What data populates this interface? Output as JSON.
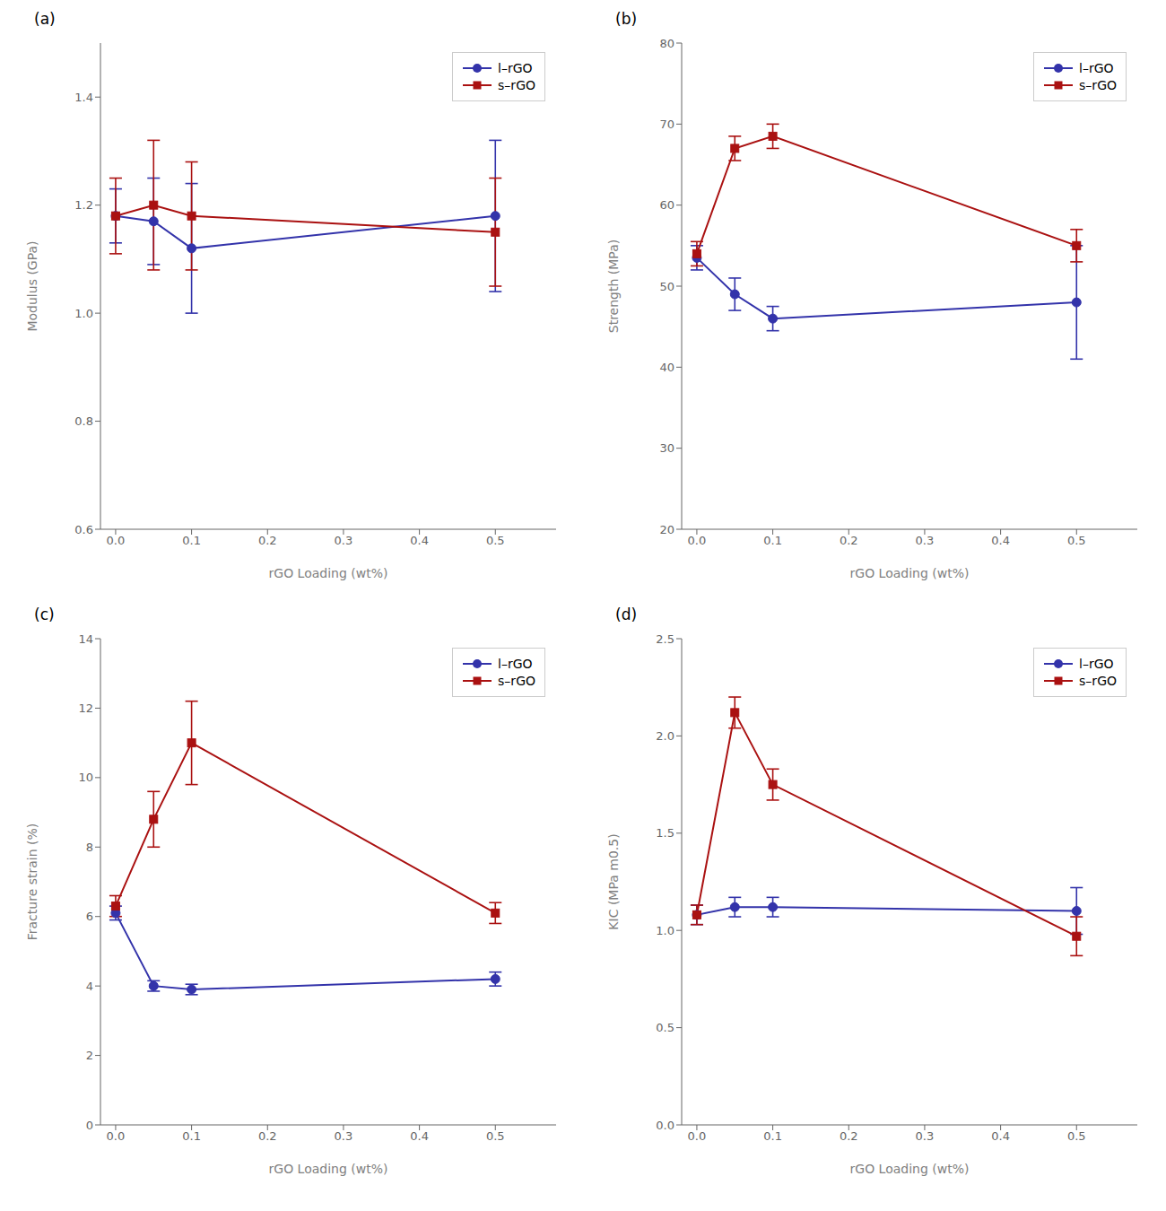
{
  "chart_data": [
    {
      "type": "line",
      "title": "(a)",
      "x_label": "rGO Loading (wt%)",
      "y_label": "Modulus (GPa)",
      "x": [
        0.0,
        0.05,
        0.1,
        0.5
      ],
      "series": [
        {
          "name": "l–rGO",
          "color": "#3333aa",
          "marker": "circle",
          "line_style": "solid",
          "values": [
            1.18,
            1.17,
            1.12,
            1.18
          ],
          "errors": [
            0.05,
            0.08,
            0.12,
            0.14
          ]
        },
        {
          "name": "s–rGO",
          "color": "#aa1111",
          "marker": "square",
          "line_style": "solid",
          "values": [
            1.18,
            1.2,
            1.18,
            1.15
          ],
          "errors": [
            0.07,
            0.12,
            0.1,
            0.1
          ]
        }
      ],
      "xlim": [
        -0.02,
        0.58
      ],
      "xticks": [
        {
          "value": 0.0,
          "label": "0.0"
        },
        0.1,
        0.2,
        0.3,
        0.4,
        0.5
      ],
      "ylim": [
        0.6,
        1.5
      ],
      "yticks": [
        0.6,
        0.8,
        {
          "value": 1.0,
          "label": "1.0"
        },
        1.2,
        1.4
      ],
      "legend": "upper right",
      "grid": false
    },
    {
      "type": "line",
      "title": "(b)",
      "x_label": "rGO Loading (wt%)",
      "y_label": "Strength (MPa)",
      "x": [
        0.0,
        0.05,
        0.1,
        0.5
      ],
      "series": [
        {
          "name": "l–rGO",
          "color": "#3333aa",
          "marker": "circle",
          "line_style": "solid",
          "values": [
            53.5,
            49.0,
            46.0,
            48.0
          ],
          "errors": [
            1.5,
            2.0,
            1.5,
            7.0
          ]
        },
        {
          "name": "s–rGO",
          "color": "#aa1111",
          "marker": "square",
          "line_style": "solid",
          "values": [
            54.0,
            67.0,
            68.5,
            55.0
          ],
          "errors": [
            1.5,
            1.5,
            1.5,
            2.0
          ]
        }
      ],
      "xlim": [
        -0.02,
        0.58
      ],
      "xticks": [
        {
          "value": 0.0,
          "label": "0.0"
        },
        0.1,
        0.2,
        0.3,
        0.4,
        0.5
      ],
      "ylim": [
        20,
        80
      ],
      "yticks": [
        20,
        30,
        40,
        50,
        60,
        70,
        80
      ],
      "legend": "upper right",
      "grid": false
    },
    {
      "type": "line",
      "title": "(c)",
      "x_label": "rGO Loading (wt%)",
      "y_label": "Fracture strain (%)",
      "x": [
        0.0,
        0.05,
        0.1,
        0.5
      ],
      "series": [
        {
          "name": "l–rGO",
          "color": "#3333aa",
          "marker": "circle",
          "line_style": "solid",
          "values": [
            6.1,
            4.0,
            3.9,
            4.2
          ],
          "errors": [
            0.2,
            0.15,
            0.15,
            0.2
          ]
        },
        {
          "name": "s–rGO",
          "color": "#aa1111",
          "marker": "square",
          "line_style": "solid",
          "values": [
            6.3,
            8.8,
            11.0,
            6.1
          ],
          "errors": [
            0.3,
            0.8,
            1.2,
            0.3
          ]
        }
      ],
      "xlim": [
        -0.02,
        0.58
      ],
      "xticks": [
        {
          "value": 0.0,
          "label": "0.0"
        },
        0.1,
        0.2,
        0.3,
        0.4,
        0.5
      ],
      "ylim": [
        0,
        14
      ],
      "yticks": [
        0,
        2,
        4,
        6,
        8,
        10,
        12,
        14
      ],
      "legend": "upper right",
      "grid": false
    },
    {
      "type": "line",
      "title": "(d)",
      "x_label": "rGO Loading (wt%)",
      "y_label": "KIC (MPa m0.5)",
      "x": [
        0.0,
        0.05,
        0.1,
        0.5
      ],
      "series": [
        {
          "name": "l–rGO",
          "color": "#3333aa",
          "marker": "circle",
          "line_style": "solid",
          "values": [
            1.08,
            1.12,
            1.12,
            1.1
          ],
          "errors": [
            0.05,
            0.05,
            0.05,
            0.12
          ]
        },
        {
          "name": "s–rGO",
          "color": "#aa1111",
          "marker": "square",
          "line_style": "solid",
          "values": [
            1.08,
            2.12,
            1.75,
            0.97
          ],
          "errors": [
            0.05,
            0.08,
            0.08,
            0.1
          ]
        }
      ],
      "xlim": [
        -0.02,
        0.58
      ],
      "xticks": [
        {
          "value": 0.0,
          "label": "0.0"
        },
        0.1,
        0.2,
        0.3,
        0.4,
        0.5
      ],
      "ylim": [
        0,
        2.5
      ],
      "yticks": [
        {
          "value": 0.0,
          "label": "0.0"
        },
        0.5,
        {
          "value": 1.0,
          "label": "1.0"
        },
        1.5,
        {
          "value": 2.0,
          "label": "2.0"
        },
        2.5
      ],
      "legend": "upper right",
      "grid": false
    }
  ]
}
